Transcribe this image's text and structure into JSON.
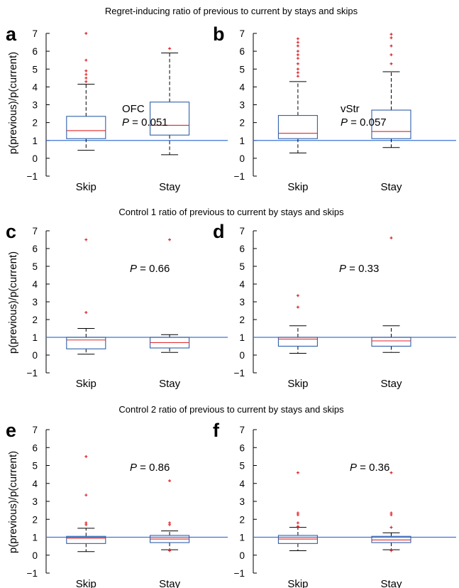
{
  "row_titles": [
    "Regret-inducing ratio of previous to current by stays and skips",
    "Control 1 ratio of previous to current by stays and skips",
    "Control 2 ratio of previous to current by stays and skips"
  ],
  "y_axis_label": "p(previous)/p(current)",
  "colors": {
    "box": "#2f5fa8",
    "median": "#e0262a",
    "outlier": "#e0262a",
    "reference_line": "#3d74d8",
    "whisker": "#000000"
  },
  "chart_data": [
    {
      "panel": "a",
      "type": "box",
      "categories": [
        "Skip",
        "Stay"
      ],
      "ylim": [
        -1,
        7
      ],
      "yticks": [
        -1,
        0,
        1,
        2,
        3,
        4,
        5,
        6,
        7
      ],
      "reference_line": 1,
      "annotation": [
        "OFC",
        "P = 0.051"
      ],
      "boxes": [
        {
          "category": "Skip",
          "whislo": 0.45,
          "q1": 1.1,
          "med": 1.55,
          "q3": 2.35,
          "whishi": 4.15,
          "fliers": [
            7.0,
            5.5,
            4.9,
            4.7,
            4.5,
            4.3
          ]
        },
        {
          "category": "Stay",
          "whislo": 0.2,
          "q1": 1.3,
          "med": 1.85,
          "q3": 3.15,
          "whishi": 5.9,
          "fliers": [
            6.15
          ]
        }
      ]
    },
    {
      "panel": "b",
      "type": "box",
      "categories": [
        "Skip",
        "Stay"
      ],
      "ylim": [
        -1,
        7
      ],
      "yticks": [
        -1,
        0,
        1,
        2,
        3,
        4,
        5,
        6,
        7
      ],
      "reference_line": 1,
      "annotation": [
        "vStr",
        "P = 0.057"
      ],
      "boxes": [
        {
          "category": "Skip",
          "whislo": 0.3,
          "q1": 1.1,
          "med": 1.4,
          "q3": 2.4,
          "whishi": 4.3,
          "fliers": [
            6.7,
            6.5,
            6.3,
            6.0,
            5.8,
            5.6,
            5.3,
            5.0,
            4.8,
            4.6
          ]
        },
        {
          "category": "Stay",
          "whislo": 0.6,
          "q1": 1.1,
          "med": 1.5,
          "q3": 2.7,
          "whishi": 4.85,
          "fliers": [
            6.95,
            6.75,
            6.3,
            5.8,
            5.3
          ]
        }
      ]
    },
    {
      "panel": "c",
      "type": "box",
      "categories": [
        "Skip",
        "Stay"
      ],
      "ylim": [
        -1,
        7
      ],
      "yticks": [
        -1,
        0,
        1,
        2,
        3,
        4,
        5,
        6,
        7
      ],
      "reference_line": 1,
      "annotation": [
        "P = 0.66"
      ],
      "boxes": [
        {
          "category": "Skip",
          "whislo": 0.05,
          "q1": 0.35,
          "med": 0.85,
          "q3": 1.0,
          "whishi": 1.5,
          "fliers": [
            6.5,
            2.4
          ]
        },
        {
          "category": "Stay",
          "whislo": 0.15,
          "q1": 0.4,
          "med": 0.7,
          "q3": 1.0,
          "whishi": 1.15,
          "fliers": [
            6.5
          ]
        }
      ]
    },
    {
      "panel": "d",
      "type": "box",
      "categories": [
        "Skip",
        "Stay"
      ],
      "ylim": [
        -1,
        7
      ],
      "yticks": [
        -1,
        0,
        1,
        2,
        3,
        4,
        5,
        6,
        7
      ],
      "reference_line": 1,
      "annotation": [
        "P = 0.33"
      ],
      "boxes": [
        {
          "category": "Skip",
          "whislo": 0.1,
          "q1": 0.5,
          "med": 0.9,
          "q3": 1.0,
          "whishi": 1.65,
          "fliers": [
            3.35,
            2.7
          ]
        },
        {
          "category": "Stay",
          "whislo": 0.15,
          "q1": 0.5,
          "med": 0.8,
          "q3": 1.0,
          "whishi": 1.65,
          "fliers": [
            6.6
          ]
        }
      ]
    },
    {
      "panel": "e",
      "type": "box",
      "categories": [
        "Skip",
        "Stay"
      ],
      "ylim": [
        -1,
        7
      ],
      "yticks": [
        -1,
        0,
        1,
        2,
        3,
        4,
        5,
        6,
        7
      ],
      "reference_line": 1,
      "annotation": [
        "P = 0.86"
      ],
      "boxes": [
        {
          "category": "Skip",
          "whislo": 0.2,
          "q1": 0.65,
          "med": 0.95,
          "q3": 1.05,
          "whishi": 1.5,
          "fliers": [
            5.5,
            3.35,
            1.8,
            1.7
          ]
        },
        {
          "category": "Stay",
          "whislo": 0.3,
          "q1": 0.7,
          "med": 0.9,
          "q3": 1.1,
          "whishi": 1.35,
          "fliers": [
            4.15,
            1.8,
            1.7,
            0.25
          ]
        }
      ]
    },
    {
      "panel": "f",
      "type": "box",
      "categories": [
        "Skip",
        "Stay"
      ],
      "ylim": [
        -1,
        7
      ],
      "yticks": [
        -1,
        0,
        1,
        2,
        3,
        4,
        5,
        6,
        7
      ],
      "reference_line": 1,
      "annotation": [
        "P = 0.36"
      ],
      "boxes": [
        {
          "category": "Skip",
          "whislo": 0.25,
          "q1": 0.65,
          "med": 0.9,
          "q3": 1.1,
          "whishi": 1.55,
          "fliers": [
            4.6,
            2.35,
            2.25,
            1.8,
            1.6
          ]
        },
        {
          "category": "Stay",
          "whislo": 0.3,
          "q1": 0.7,
          "med": 0.85,
          "q3": 1.05,
          "whishi": 1.25,
          "fliers": [
            4.6,
            2.35,
            2.25,
            1.55,
            0.25
          ]
        }
      ]
    }
  ]
}
